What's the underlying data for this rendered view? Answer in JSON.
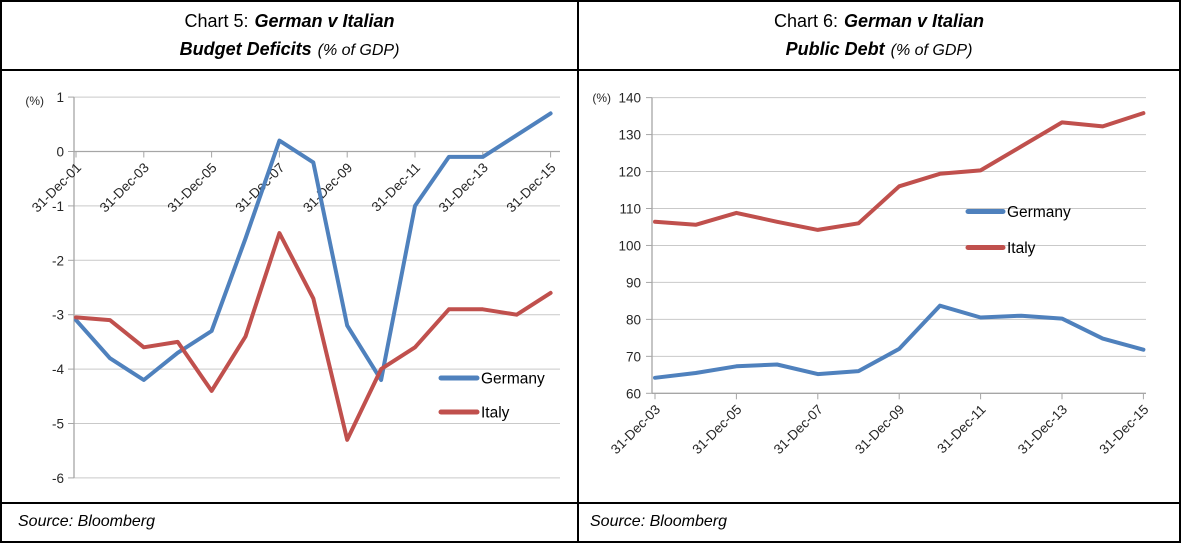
{
  "panels": [
    {
      "title_prefix": "Chart 5:",
      "title_main": "German v Italian",
      "subtitle_main": "Budget Deficits",
      "subtitle_note": "(% of GDP)",
      "source": "Source: Bloomberg"
    },
    {
      "title_prefix": "Chart 6:",
      "title_main": "German v Italian",
      "subtitle_main": "Public Debt",
      "subtitle_note": "(% of GDP)",
      "source": "Source: Bloomberg"
    }
  ],
  "colors": {
    "germany": "#4F81BD",
    "italy": "#C0504D",
    "gridline": "#C9C9C9",
    "axis": "#A6A6A6",
    "text": "#262626"
  },
  "chart_data": [
    {
      "type": "line",
      "chart_label": "Chart 5",
      "title": "German v Italian Budget Deficits (% of GDP)",
      "unit_label": "(%)",
      "x_years": [
        2001,
        2002,
        2003,
        2004,
        2005,
        2006,
        2007,
        2008,
        2009,
        2010,
        2011,
        2012,
        2013,
        2014,
        2015
      ],
      "x_tick_labels": [
        "31-Dec-01",
        "31-Dec-03",
        "31-Dec-05",
        "31-Dec-07",
        "31-Dec-09",
        "31-Dec-11",
        "31-Dec-13",
        "31-Dec-15"
      ],
      "ylim": [
        -6,
        1
      ],
      "ytick_step": 1,
      "grid": true,
      "legend_position": "inside-right",
      "series": [
        {
          "name": "Germany",
          "color_key": "germany",
          "values": [
            -3.1,
            -3.8,
            -4.2,
            -3.7,
            -3.3,
            -1.6,
            0.2,
            -0.2,
            -3.2,
            -4.2,
            -1.0,
            -0.1,
            -0.1,
            0.3,
            0.7
          ]
        },
        {
          "name": "Italy",
          "color_key": "italy",
          "values": [
            -3.05,
            -3.1,
            -3.6,
            -3.5,
            -4.4,
            -3.4,
            -1.5,
            -2.7,
            -5.3,
            -4.0,
            -3.6,
            -2.9,
            -2.9,
            -3.0,
            -2.6
          ]
        }
      ]
    },
    {
      "type": "line",
      "chart_label": "Chart 6",
      "title": "German v Italian Public Debt (% of GDP)",
      "unit_label": "(%)",
      "x_years": [
        2003,
        2004,
        2005,
        2006,
        2007,
        2008,
        2009,
        2010,
        2011,
        2012,
        2013,
        2014,
        2015
      ],
      "x_tick_labels": [
        "31-Dec-03",
        "31-Dec-05",
        "31-Dec-07",
        "31-Dec-09",
        "31-Dec-11",
        "31-Dec-13",
        "31-Dec-15"
      ],
      "ylim": [
        60,
        140
      ],
      "ytick_step": 10,
      "grid": true,
      "legend_position": "inside-right",
      "series": [
        {
          "name": "Germany",
          "color_key": "germany",
          "values": [
            64.2,
            65.5,
            67.3,
            67.8,
            65.2,
            66.0,
            72.0,
            83.7,
            80.5,
            81.0,
            80.2,
            74.8,
            71.8
          ]
        },
        {
          "name": "Italy",
          "color_key": "italy",
          "values": [
            106.4,
            105.6,
            108.8,
            106.4,
            104.2,
            106.0,
            116.0,
            119.4,
            120.3,
            126.8,
            133.3,
            132.2,
            135.8
          ]
        }
      ]
    }
  ]
}
